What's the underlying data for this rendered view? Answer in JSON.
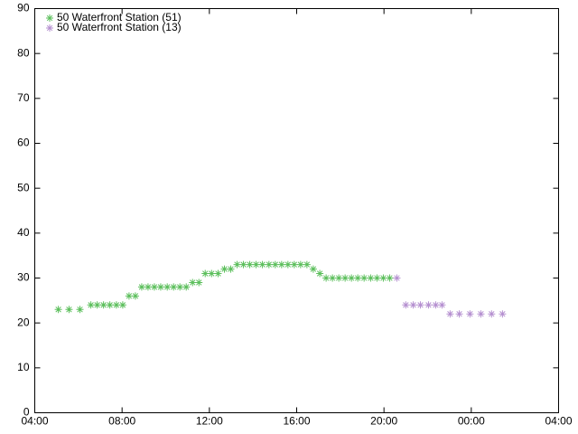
{
  "chart_data": {
    "type": "scatter",
    "xlim": [
      4,
      28
    ],
    "xticks": [
      {
        "value": 4,
        "label": "04:00"
      },
      {
        "value": 8,
        "label": "08:00"
      },
      {
        "value": 12,
        "label": "12:00"
      },
      {
        "value": 16,
        "label": "16:00"
      },
      {
        "value": 20,
        "label": "20:00"
      },
      {
        "value": 24,
        "label": "00:00"
      },
      {
        "value": 28,
        "label": "04:00"
      }
    ],
    "ylim": [
      0,
      90
    ],
    "yticks": [
      0,
      10,
      20,
      30,
      40,
      50,
      60,
      70,
      80,
      90
    ],
    "legend": "top-left",
    "series": [
      {
        "name": "50 Waterfront Station (51)",
        "color": "#5cbf5c",
        "x": [
          5.08,
          5.57,
          6.07,
          6.57,
          6.86,
          7.15,
          7.44,
          7.74,
          8.03,
          8.32,
          8.61,
          8.9,
          9.19,
          9.48,
          9.77,
          10.07,
          10.36,
          10.65,
          10.94,
          11.23,
          11.52,
          11.81,
          12.1,
          12.4,
          12.69,
          12.98,
          13.27,
          13.56,
          13.85,
          14.14,
          14.43,
          14.73,
          15.02,
          15.31,
          15.6,
          15.89,
          16.18,
          16.47,
          16.76,
          17.06,
          17.35,
          17.64,
          17.93,
          18.22,
          18.51,
          18.8,
          19.09,
          19.39,
          19.68,
          19.97,
          20.26
        ],
        "values": [
          23,
          23,
          23,
          24,
          24,
          24,
          24,
          24,
          24,
          26,
          26,
          28,
          28,
          28,
          28,
          28,
          28,
          28,
          28,
          29,
          29,
          31,
          31,
          31,
          32,
          32,
          33,
          33,
          33,
          33,
          33,
          33,
          33,
          33,
          33,
          33,
          33,
          33,
          32,
          31,
          30,
          30,
          30,
          30,
          30,
          30,
          30,
          30,
          30,
          30,
          30
        ]
      },
      {
        "name": "50 Waterfront Station (13)",
        "color": "#b590d0",
        "x": [
          20.59,
          21.0,
          21.34,
          21.67,
          22.04,
          22.37,
          22.66,
          23.03,
          23.45,
          23.94,
          24.44,
          24.93,
          25.43
        ],
        "values": [
          30,
          24,
          24,
          24,
          24,
          24,
          24,
          22,
          22,
          22,
          22,
          22,
          22
        ]
      }
    ]
  }
}
